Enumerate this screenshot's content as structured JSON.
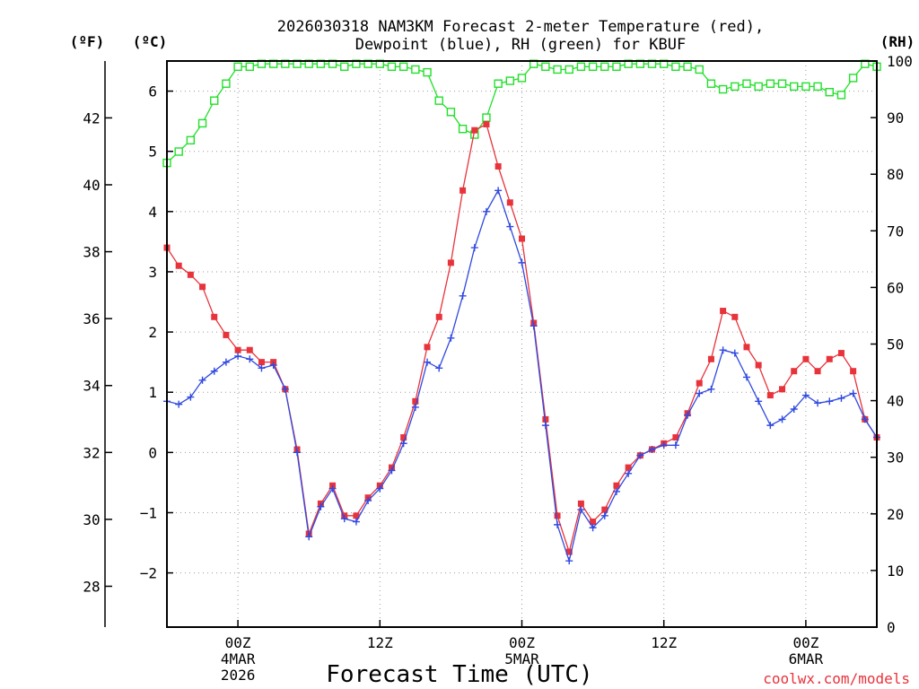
{
  "chart_data": {
    "type": "line",
    "title_line1": "2026030318 NAM3KM Forecast 2-meter Temperature (red),",
    "title_line2": "Dewpoint (blue), RH (green) for KBUF",
    "xlabel": "Forecast Time (UTC)",
    "credit": "coolwx.com/models",
    "units": {
      "fahrenheit": "(ºF)",
      "celsius": "(ºC)",
      "rh": "(RH)"
    },
    "x_range_hours": [
      0,
      60
    ],
    "y_celsius_range": [
      -2.9,
      6.5
    ],
    "y_fahrenheit_ticks": [
      {
        "value": 28,
        "label": "28"
      },
      {
        "value": 30,
        "label": "30"
      },
      {
        "value": 32,
        "label": "32"
      },
      {
        "value": 34,
        "label": "34"
      },
      {
        "value": 36,
        "label": "36"
      },
      {
        "value": 38,
        "label": "38"
      },
      {
        "value": 40,
        "label": "40"
      },
      {
        "value": 42,
        "label": "42"
      }
    ],
    "y_celsius_ticks": [
      {
        "value": -2,
        "label": "−2"
      },
      {
        "value": -1,
        "label": "−1"
      },
      {
        "value": 0,
        "label": "0"
      },
      {
        "value": 1,
        "label": "1"
      },
      {
        "value": 2,
        "label": "2"
      },
      {
        "value": 3,
        "label": "3"
      },
      {
        "value": 4,
        "label": "4"
      },
      {
        "value": 5,
        "label": "5"
      },
      {
        "value": 6,
        "label": "6"
      }
    ],
    "y_rh_range": [
      0,
      100
    ],
    "y_rh_ticks": [
      {
        "value": 0,
        "label": "0"
      },
      {
        "value": 10,
        "label": "10"
      },
      {
        "value": 20,
        "label": "20"
      },
      {
        "value": 30,
        "label": "30"
      },
      {
        "value": 40,
        "label": "40"
      },
      {
        "value": 50,
        "label": "50"
      },
      {
        "value": 60,
        "label": "60"
      },
      {
        "value": 70,
        "label": "70"
      },
      {
        "value": 80,
        "label": "80"
      },
      {
        "value": 90,
        "label": "90"
      },
      {
        "value": 100,
        "label": "100"
      }
    ],
    "x_ticks": [
      {
        "hour": 6,
        "lines": [
          "00Z",
          "4MAR",
          "2026"
        ]
      },
      {
        "hour": 18,
        "lines": [
          "12Z"
        ]
      },
      {
        "hour": 30,
        "lines": [
          "00Z",
          "5MAR"
        ]
      },
      {
        "hour": 42,
        "lines": [
          "12Z"
        ]
      },
      {
        "hour": 54,
        "lines": [
          "00Z",
          "6MAR"
        ]
      }
    ],
    "grid": true,
    "series": [
      {
        "name": "Temperature",
        "color": "#e8333b",
        "marker": "filled-square",
        "axis": "celsius",
        "values": [
          3.4,
          3.1,
          2.95,
          2.75,
          2.25,
          1.95,
          1.7,
          1.7,
          1.5,
          1.5,
          1.05,
          0.05,
          -1.35,
          -0.85,
          -0.55,
          -1.05,
          -1.05,
          -0.75,
          -0.55,
          -0.25,
          0.25,
          0.85,
          1.75,
          2.25,
          3.15,
          4.35,
          5.35,
          5.45,
          4.75,
          4.15,
          3.55,
          2.15,
          0.55,
          -1.05,
          -1.65,
          -0.85,
          -1.15,
          -0.95,
          -0.55,
          -0.25,
          -0.05,
          0.05,
          0.15,
          0.25,
          0.65,
          1.15,
          1.55,
          2.35,
          2.25,
          1.75,
          1.45,
          0.95,
          1.05,
          1.35,
          1.55,
          1.35,
          1.55,
          1.65,
          1.35,
          0.55,
          0.25
        ]
      },
      {
        "name": "Dewpoint",
        "color": "#3049e0",
        "marker": "plus",
        "axis": "celsius",
        "values": [
          0.85,
          0.8,
          0.92,
          1.2,
          1.35,
          1.5,
          1.6,
          1.55,
          1.4,
          1.45,
          1.05,
          0.0,
          -1.4,
          -0.9,
          -0.6,
          -1.1,
          -1.15,
          -0.8,
          -0.6,
          -0.3,
          0.15,
          0.75,
          1.5,
          1.4,
          1.9,
          2.6,
          3.4,
          4.0,
          4.35,
          3.75,
          3.15,
          2.1,
          0.45,
          -1.2,
          -1.8,
          -0.95,
          -1.25,
          -1.05,
          -0.65,
          -0.35,
          -0.05,
          0.05,
          0.12,
          0.12,
          0.62,
          0.98,
          1.05,
          1.7,
          1.65,
          1.25,
          0.85,
          0.45,
          0.55,
          0.72,
          0.95,
          0.82,
          0.85,
          0.9,
          0.98,
          0.55,
          0.25
        ]
      },
      {
        "name": "RH",
        "color": "#22e02a",
        "marker": "open-square",
        "axis": "rh",
        "values": [
          82,
          84,
          86,
          89,
          93,
          96,
          99,
          99,
          99.5,
          99.5,
          99.5,
          99.5,
          99.5,
          99.5,
          99.5,
          99,
          99.5,
          99.5,
          99.5,
          99,
          99,
          98.5,
          98,
          93,
          91,
          88,
          87,
          90,
          96,
          96.5,
          97,
          99.5,
          99,
          98.5,
          98.5,
          99,
          99,
          99,
          99,
          99.5,
          99.5,
          99.5,
          99.5,
          99,
          99,
          98.5,
          96,
          95,
          95.5,
          96,
          95.5,
          96,
          96,
          95.5,
          95.5,
          95.5,
          94.5,
          94,
          97,
          99.5,
          99
        ]
      }
    ]
  }
}
